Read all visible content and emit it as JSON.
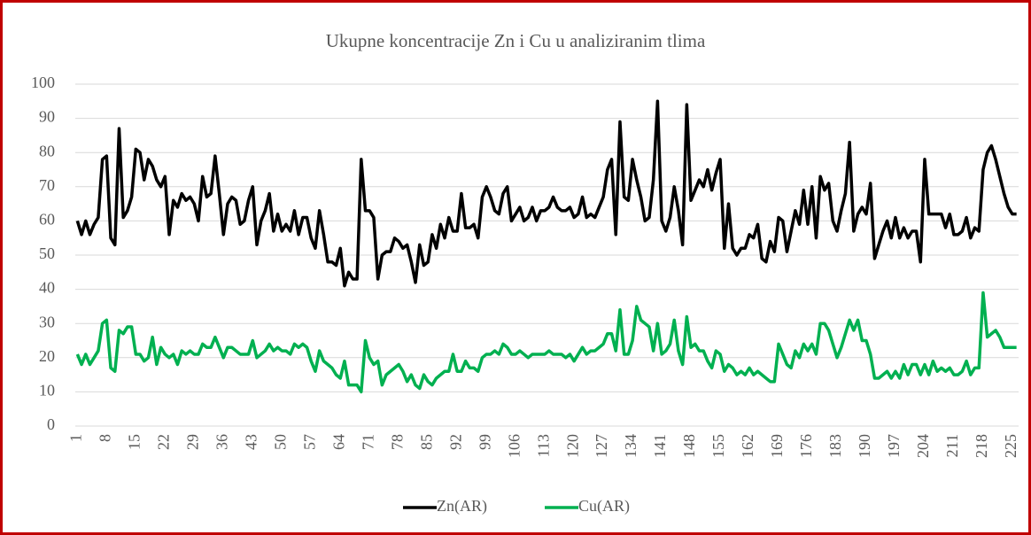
{
  "chart_data": {
    "type": "line",
    "title": "Ukupne koncentracije Zn i Cu u analiziranim tlima",
    "x": [
      1,
      2,
      3,
      4,
      5,
      6,
      7,
      8,
      9,
      10,
      11,
      12,
      13,
      14,
      15,
      16,
      17,
      18,
      19,
      20,
      21,
      22,
      23,
      24,
      25,
      26,
      27,
      28,
      29,
      30,
      31,
      32,
      33,
      34,
      35,
      36,
      37,
      38,
      39,
      40,
      41,
      42,
      43,
      44,
      45,
      46,
      47,
      48,
      49,
      50,
      51,
      52,
      53,
      54,
      55,
      56,
      57,
      58,
      59,
      60,
      61,
      62,
      63,
      64,
      65,
      66,
      67,
      68,
      69,
      70,
      71,
      72,
      73,
      74,
      75,
      76,
      77,
      78,
      79,
      80,
      81,
      82,
      83,
      84,
      85,
      86,
      87,
      88,
      89,
      90,
      91,
      92,
      93,
      94,
      95,
      96,
      97,
      98,
      99,
      100,
      101,
      102,
      103,
      104,
      105,
      106,
      107,
      108,
      109,
      110,
      111,
      112,
      113,
      114,
      115,
      116,
      117,
      118,
      119,
      120,
      121,
      122,
      123,
      124,
      125,
      126,
      127,
      128,
      129,
      130,
      131,
      132,
      133,
      134,
      135,
      136,
      137,
      138,
      139,
      140,
      141,
      142,
      143,
      144,
      145,
      146,
      147,
      148,
      149,
      150,
      151,
      152,
      153,
      154,
      155,
      156,
      157,
      158,
      159,
      160,
      161,
      162,
      163,
      164,
      165,
      166,
      167,
      168,
      169,
      170,
      171,
      172,
      173,
      174,
      175,
      176,
      177,
      178,
      179,
      180,
      181,
      182,
      183,
      184,
      185,
      186,
      187,
      188,
      189,
      190,
      191,
      192,
      193,
      194,
      195,
      196,
      197,
      198,
      199,
      200,
      201,
      202,
      203,
      204,
      205,
      206,
      207,
      208,
      209,
      210,
      211,
      212,
      213,
      214,
      215,
      216,
      217,
      218,
      219,
      220,
      221,
      222,
      223,
      224,
      225,
      226
    ],
    "series": [
      {
        "name": "Zn(AR)",
        "color": "#000000",
        "values": [
          60,
          56,
          60,
          56,
          59,
          61,
          78,
          79,
          55,
          53,
          87,
          61,
          63,
          67,
          81,
          80,
          72,
          78,
          76,
          72,
          70,
          73,
          56,
          66,
          64,
          68,
          66,
          67,
          65,
          60,
          73,
          67,
          68,
          79,
          68,
          56,
          65,
          67,
          66,
          59,
          60,
          66,
          70,
          53,
          60,
          63,
          68,
          57,
          62,
          57,
          59,
          57,
          63,
          56,
          61,
          61,
          55,
          52,
          63,
          56,
          48,
          48,
          47,
          52,
          41,
          45,
          43,
          43,
          78,
          63,
          63,
          61,
          43,
          50,
          51,
          51,
          55,
          54,
          52,
          53,
          48,
          42,
          53,
          47,
          48,
          56,
          52,
          59,
          55,
          61,
          57,
          57,
          68,
          58,
          58,
          59,
          55,
          67,
          70,
          67,
          63,
          62,
          68,
          70,
          60,
          62,
          64,
          60,
          61,
          64,
          60,
          63,
          63,
          64,
          67,
          64,
          63,
          63,
          64,
          61,
          62,
          67,
          61,
          62,
          61,
          64,
          67,
          75,
          78,
          56,
          89,
          67,
          66,
          78,
          72,
          67,
          60,
          61,
          72,
          95,
          60,
          57,
          61,
          70,
          63,
          53,
          94,
          66,
          69,
          72,
          70,
          75,
          69,
          74,
          78,
          52,
          65,
          52,
          50,
          52,
          52,
          56,
          55,
          59,
          49,
          48,
          54,
          51,
          61,
          60,
          51,
          57,
          63,
          59,
          69,
          59,
          70,
          55,
          73,
          69,
          71,
          60,
          57,
          63,
          68,
          83,
          57,
          62,
          64,
          62,
          71,
          49,
          53,
          57,
          60,
          55,
          61,
          55,
          58,
          55,
          57,
          57,
          48,
          78,
          62,
          62,
          62,
          62,
          58,
          62,
          56,
          56,
          57,
          61,
          55,
          58,
          57,
          75,
          80,
          82,
          78,
          73,
          68,
          64,
          62,
          62
        ]
      },
      {
        "name": "Cu(AR)",
        "color": "#00b050",
        "values": [
          21,
          18,
          21,
          18,
          20,
          22,
          30,
          31,
          17,
          16,
          28,
          27,
          29,
          29,
          21,
          21,
          19,
          20,
          26,
          18,
          23,
          21,
          20,
          21,
          18,
          22,
          21,
          22,
          21,
          21,
          24,
          23,
          23,
          26,
          23,
          20,
          23,
          23,
          22,
          21,
          21,
          21,
          25,
          20,
          21,
          22,
          24,
          22,
          23,
          22,
          22,
          21,
          24,
          23,
          24,
          23,
          19,
          16,
          22,
          19,
          18,
          17,
          15,
          14,
          19,
          12,
          12,
          12,
          10,
          25,
          20,
          18,
          19,
          12,
          15,
          16,
          17,
          18,
          16,
          13,
          15,
          12,
          11,
          15,
          13,
          12,
          14,
          15,
          16,
          16,
          21,
          16,
          16,
          19,
          17,
          17,
          16,
          20,
          21,
          21,
          22,
          21,
          24,
          23,
          21,
          21,
          22,
          21,
          20,
          21,
          21,
          21,
          21,
          22,
          21,
          21,
          21,
          20,
          21,
          19,
          21,
          23,
          21,
          22,
          22,
          23,
          24,
          27,
          27,
          22,
          34,
          21,
          21,
          25,
          35,
          31,
          30,
          29,
          22,
          30,
          21,
          22,
          24,
          31,
          22,
          18,
          32,
          23,
          24,
          22,
          22,
          19,
          17,
          22,
          21,
          16,
          18,
          17,
          15,
          16,
          15,
          17,
          15,
          16,
          15,
          14,
          13,
          13,
          24,
          21,
          18,
          17,
          22,
          20,
          24,
          22,
          24,
          21,
          30,
          30,
          28,
          24,
          20,
          23,
          27,
          31,
          28,
          31,
          25,
          25,
          21,
          14,
          14,
          15,
          16,
          14,
          16,
          14,
          18,
          15,
          18,
          18,
          15,
          18,
          15,
          19,
          16,
          17,
          16,
          17,
          15,
          15,
          16,
          19,
          15,
          17,
          17,
          39,
          26,
          27,
          28,
          26,
          23,
          23,
          23,
          23
        ]
      }
    ],
    "xlim": [
      0.5,
      226.5
    ],
    "xticks": [
      1,
      8,
      15,
      22,
      29,
      36,
      43,
      50,
      57,
      64,
      71,
      78,
      85,
      92,
      99,
      106,
      113,
      120,
      127,
      134,
      141,
      148,
      155,
      162,
      169,
      176,
      183,
      190,
      197,
      204,
      211,
      218,
      225
    ],
    "ylim": [
      0,
      100
    ],
    "yticks": [
      0,
      10,
      20,
      30,
      40,
      50,
      60,
      70,
      80,
      90,
      100
    ],
    "grid": true,
    "legend": "bottom"
  }
}
